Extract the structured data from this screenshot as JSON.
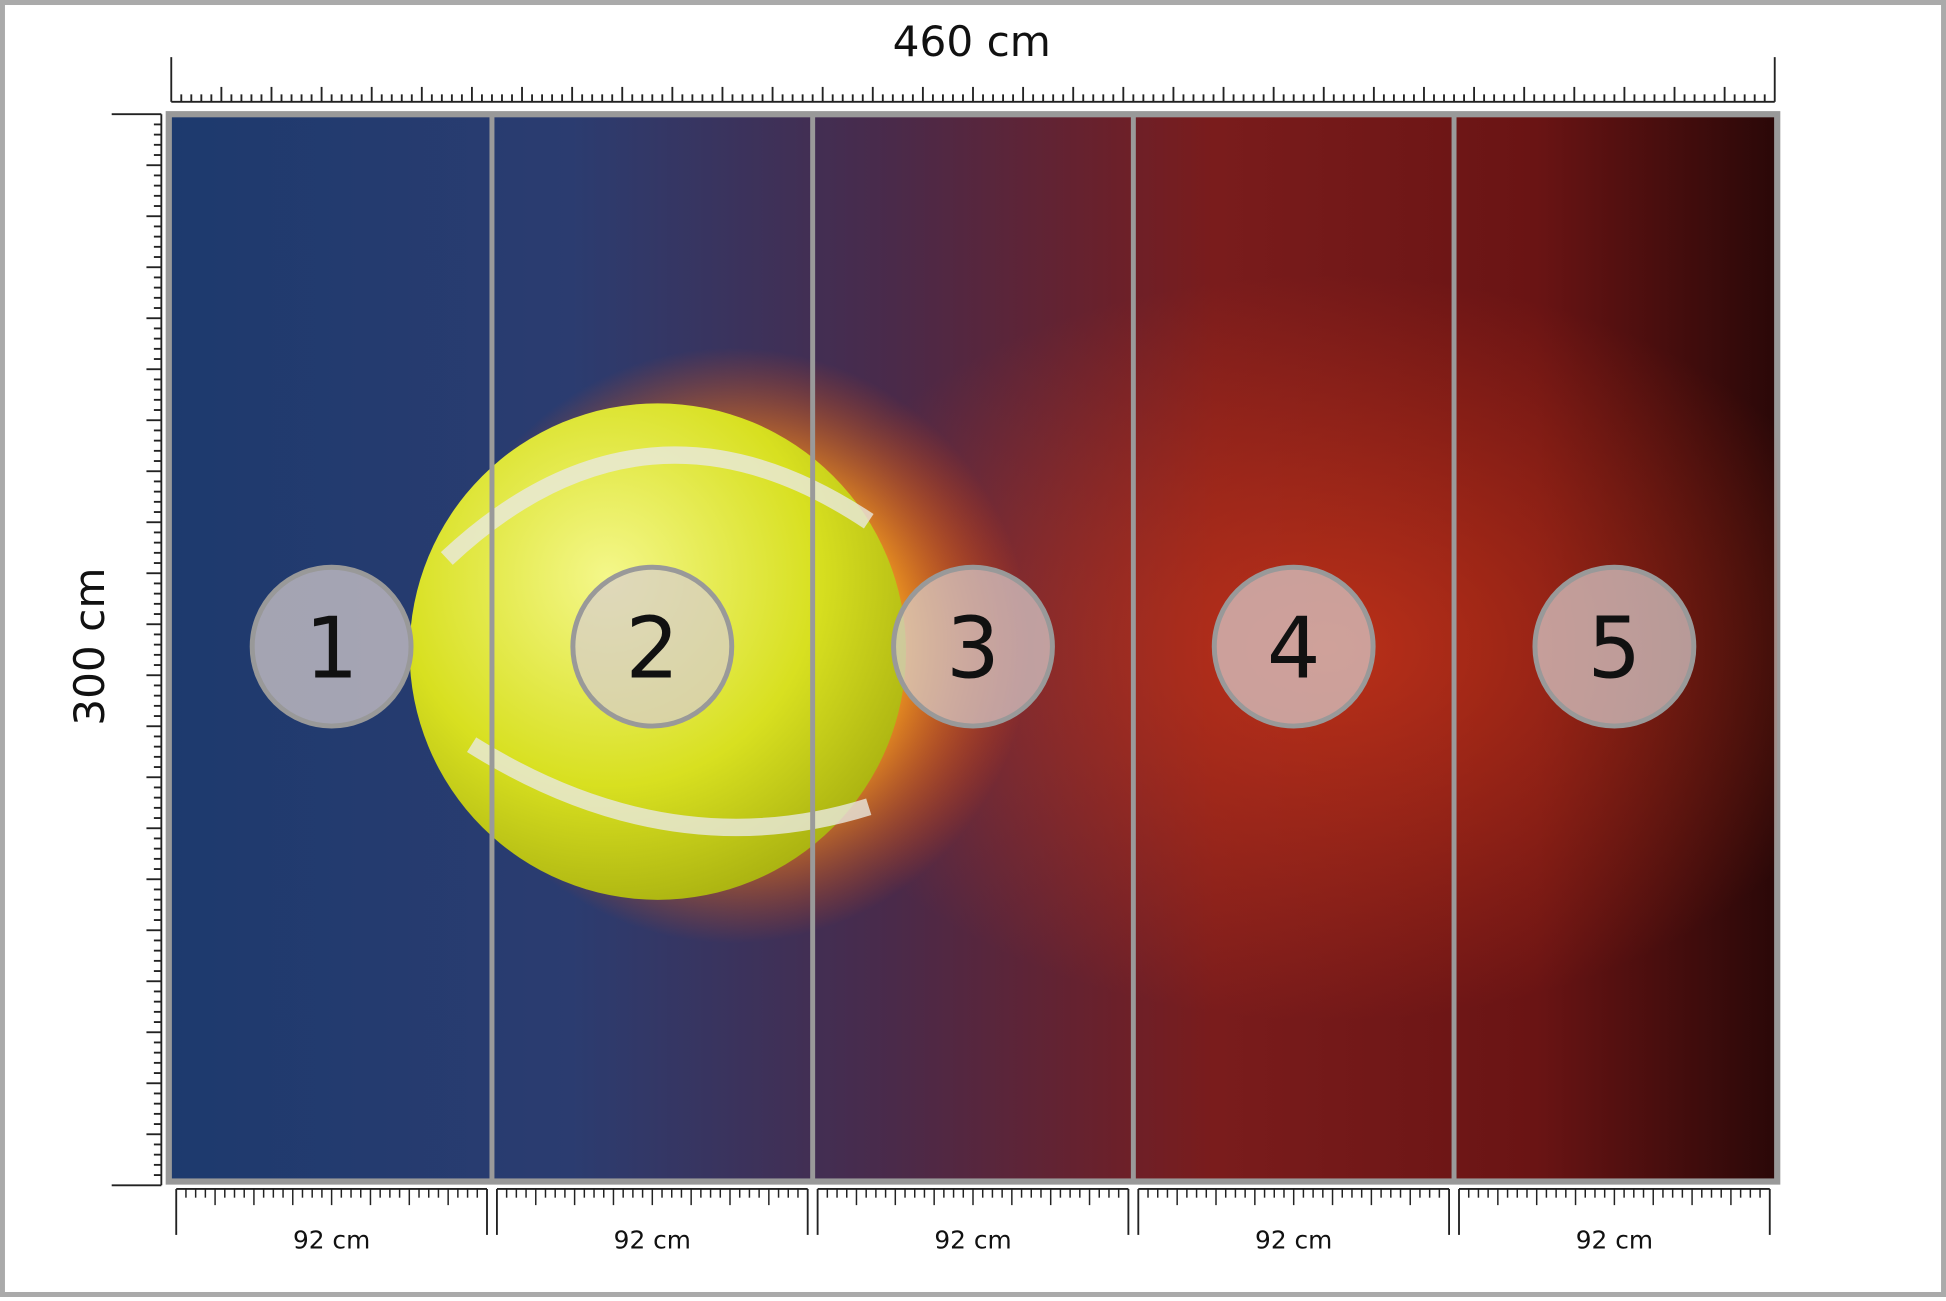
{
  "width_label": "460 cm",
  "height_label": "300 cm",
  "panels": [
    {
      "number": "1",
      "width_label": "92 cm"
    },
    {
      "number": "2",
      "width_label": "92 cm"
    },
    {
      "number": "3",
      "width_label": "92 cm"
    },
    {
      "number": "4",
      "width_label": "92 cm"
    },
    {
      "number": "5",
      "width_label": "92 cm"
    }
  ]
}
